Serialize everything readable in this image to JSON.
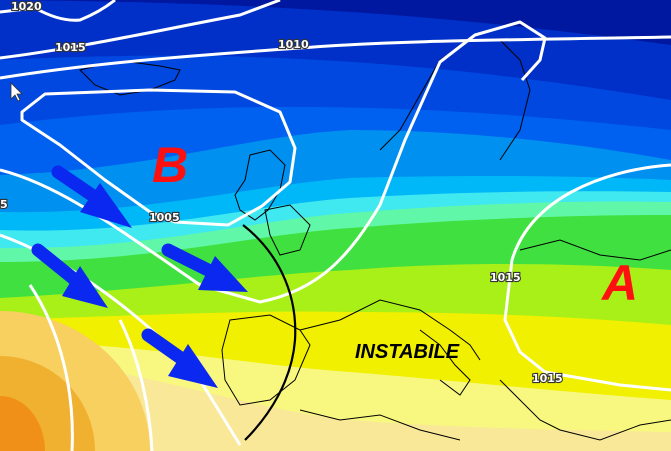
{
  "map": {
    "pressure_labels": [
      "1020",
      "1015",
      "1010",
      "1005",
      "1015",
      "1015",
      "5"
    ],
    "low_pressure_symbol": "B",
    "high_pressure_symbol": "A",
    "annotation": "INSTABILE",
    "colors": {
      "low_symbol": "#ff1010",
      "isobars": "#ffffff",
      "flow_arrows": "#0a28f0",
      "front_line": "#000000"
    },
    "flow_arrows_count": 4,
    "icons": [
      "mouse-cursor-icon"
    ]
  }
}
